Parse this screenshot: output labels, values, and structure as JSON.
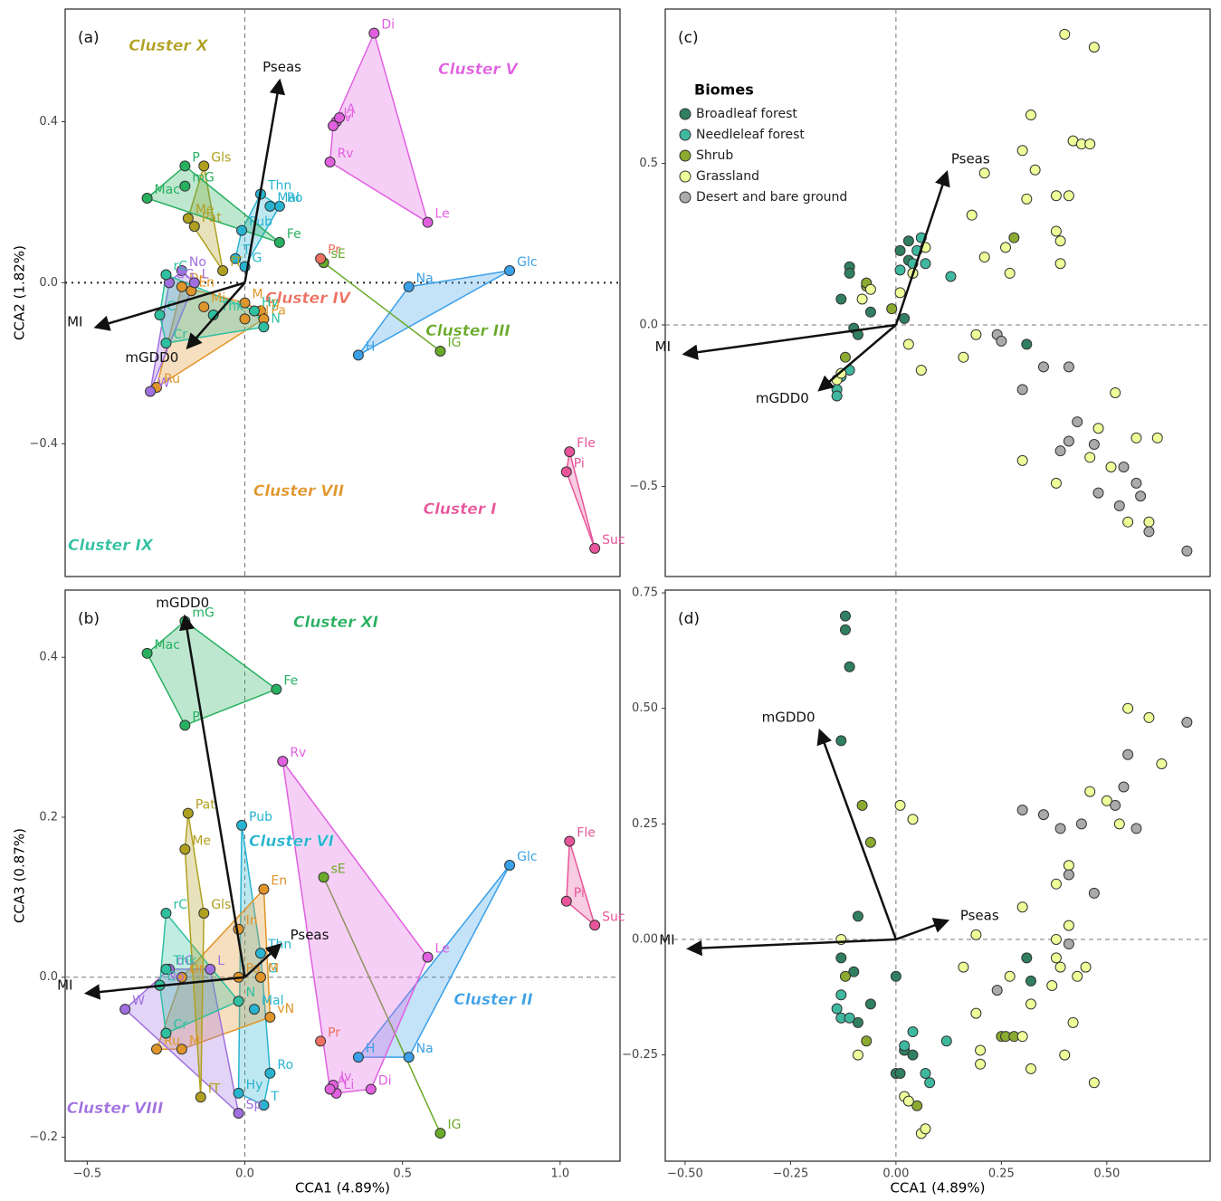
{
  "chart_data": [
    {
      "type": "scatter",
      "panel": "(a)",
      "ylabel": "CCA2 (1.82%)",
      "hull": true,
      "hline": "dotted",
      "xlim": [
        -0.57,
        1.19
      ],
      "ylim": [
        -0.73,
        0.68
      ],
      "yticks": [
        0.4,
        {
          "value": 0,
          "label": "0.0"
        },
        {
          "value": -0.4,
          "label": "−0.4"
        }
      ],
      "series": [
        {
          "name": "Cluster I",
          "color": "#e8559a",
          "labels": [
            "Fle",
            "Pi",
            "Suc"
          ],
          "x": [
            1.03,
            1.02,
            1.11
          ],
          "values": [
            -0.42,
            -0.47,
            -0.66
          ]
        },
        {
          "color": "#3aa0e8",
          "labels": [
            "Glc",
            "Na",
            "H"
          ],
          "x": [
            0.84,
            0.52,
            0.36
          ],
          "values": [
            0.03,
            -0.01,
            -0.18
          ]
        },
        {
          "name": "Cluster III",
          "color": "#6aaa2a",
          "labels": [
            "sE",
            "IG"
          ],
          "x": [
            0.25,
            0.62
          ],
          "values": [
            0.05,
            -0.17
          ]
        },
        {
          "name": "Cluster IV",
          "color": "#ee7060",
          "labels": [
            "Pr"
          ],
          "x": [
            0.24
          ],
          "values": [
            0.06
          ]
        },
        {
          "name": "Cluster V",
          "color": "#e060e0",
          "labels": [
            "Di",
            "Li",
            "Iv",
            "A",
            "Rv",
            "Le"
          ],
          "x": [
            0.41,
            0.29,
            0.28,
            0.3,
            0.27,
            0.58
          ],
          "values": [
            0.62,
            0.4,
            0.39,
            0.41,
            0.3,
            0.15
          ]
        },
        {
          "color": "#28b4d0",
          "labels": [
            "Thn",
            "Ro",
            "Mal",
            "Pub",
            "T",
            "G"
          ],
          "x": [
            0.05,
            0.11,
            0.08,
            -0.01,
            -0.03,
            0.0
          ],
          "values": [
            0.22,
            0.19,
            0.19,
            0.13,
            0.06,
            0.04
          ]
        },
        {
          "name": "Cluster VII",
          "color": "#e0952a",
          "labels": [
            "Ru",
            "Mi",
            "Dr",
            "In",
            "Pa",
            "M",
            "En",
            "vN"
          ],
          "x": [
            -0.28,
            -0.13,
            -0.2,
            0.05,
            0.06,
            0.0,
            -0.17,
            0.0
          ],
          "values": [
            -0.26,
            -0.06,
            -0.01,
            -0.07,
            -0.09,
            -0.05,
            -0.02,
            -0.09
          ]
        },
        {
          "color": "#a070e0",
          "labels": [
            "No",
            "dG",
            "L",
            "W"
          ],
          "x": [
            -0.2,
            -0.24,
            -0.16,
            -0.3
          ],
          "values": [
            0.03,
            0.0,
            0.0,
            -0.27
          ]
        },
        {
          "name": "Cluster IX",
          "color": "#2ec0a0",
          "labels": [
            "rC",
            "C",
            "Cr",
            "Thk",
            "N",
            "Hy"
          ],
          "x": [
            -0.25,
            -0.27,
            -0.25,
            -0.1,
            0.06,
            0.03
          ],
          "values": [
            0.02,
            -0.08,
            -0.15,
            -0.08,
            -0.11,
            -0.07
          ]
        },
        {
          "name": "Cluster X",
          "color": "#b0a020",
          "labels": [
            "Gls",
            "Me",
            "Pat",
            "fT"
          ],
          "x": [
            -0.13,
            -0.18,
            -0.16,
            -0.07
          ],
          "values": [
            0.29,
            0.16,
            0.14,
            0.03
          ]
        },
        {
          "color": "#27b060",
          "labels": [
            "P",
            "mG",
            "Mac",
            "Fe"
          ],
          "x": [
            -0.19,
            -0.19,
            -0.31,
            0.11
          ],
          "values": [
            0.29,
            0.24,
            0.21,
            0.1
          ]
        }
      ],
      "arrows": {
        "labels": [
          "Pseas",
          "MI",
          "mGDD0"
        ],
        "x": [
          0.11,
          -0.47,
          -0.18
        ],
        "values": [
          0.5,
          -0.11,
          -0.16
        ]
      }
    },
    {
      "type": "scatter",
      "panel": "(b)",
      "ylabel": "CCA3 (0.87%)",
      "xlabel": "CCA1 (4.89%)",
      "hull": true,
      "hline": "dashed",
      "xlim": [
        -0.57,
        1.19
      ],
      "ylim": [
        -0.23,
        0.484
      ],
      "xticks": [
        {
          "value": -0.5,
          "label": "−0.5"
        },
        {
          "value": 0,
          "label": "0.0"
        },
        0.5,
        {
          "value": 1,
          "label": "1.0"
        }
      ],
      "yticks": [
        0.4,
        0.2,
        {
          "value": 0,
          "label": "0.0"
        },
        {
          "value": -0.2,
          "label": "−0.2"
        }
      ],
      "series": [
        {
          "color": "#e8559a",
          "labels": [
            "Fle",
            "Pi",
            "Suc"
          ],
          "x": [
            1.03,
            1.02,
            1.11
          ],
          "values": [
            0.17,
            0.095,
            0.065
          ]
        },
        {
          "name": "Cluster II",
          "color": "#3aa0e8",
          "labels": [
            "Glc",
            "H",
            "Na"
          ],
          "x": [
            0.84,
            0.36,
            0.52
          ],
          "values": [
            0.14,
            -0.1,
            -0.1
          ]
        },
        {
          "color": "#6aaa2a",
          "labels": [
            "sE",
            "IG"
          ],
          "x": [
            0.25,
            0.62
          ],
          "values": [
            0.125,
            -0.195
          ]
        },
        {
          "color": "#ee7060",
          "labels": [
            "Pr"
          ],
          "x": [
            0.24
          ],
          "values": [
            -0.08
          ]
        },
        {
          "color": "#e060e0",
          "labels": [
            "Rv",
            "Le",
            "Di",
            "Li",
            "Iv",
            "A"
          ],
          "x": [
            0.12,
            0.58,
            0.4,
            0.29,
            0.28,
            0.27
          ],
          "values": [
            0.27,
            0.025,
            -0.14,
            -0.145,
            -0.135,
            -0.14
          ]
        },
        {
          "name": "Cluster VI",
          "color": "#28b4d0",
          "labels": [
            "Pub",
            "Thn",
            "G",
            "Mal",
            "Ro",
            "T",
            "Hy"
          ],
          "x": [
            -0.01,
            0.05,
            0.05,
            0.03,
            0.08,
            0.06,
            -0.02
          ],
          "values": [
            0.19,
            0.03,
            0.0,
            -0.04,
            -0.12,
            -0.16,
            -0.145
          ]
        },
        {
          "color": "#e0952a",
          "labels": [
            "En",
            "In",
            "Pa",
            "M",
            "vN",
            "Dr",
            "Ru",
            "Mi"
          ],
          "x": [
            0.06,
            -0.02,
            -0.02,
            0.05,
            0.08,
            -0.2,
            -0.28,
            -0.2
          ],
          "values": [
            0.11,
            0.06,
            0.0,
            0.0,
            -0.05,
            0.0,
            -0.09,
            -0.09
          ]
        },
        {
          "name": "Cluster VIII",
          "color": "#a070e0",
          "labels": [
            "L",
            "dG",
            "No",
            "W",
            "Sp"
          ],
          "x": [
            -0.11,
            -0.24,
            -0.27,
            -0.38,
            -0.02
          ],
          "values": [
            0.01,
            0.01,
            -0.01,
            -0.04,
            -0.17
          ]
        },
        {
          "color": "#2ec0a0",
          "labels": [
            "rC",
            "Thk",
            "C",
            "Cr",
            "N"
          ],
          "x": [
            -0.25,
            -0.25,
            -0.27,
            -0.25,
            -0.02
          ],
          "values": [
            0.08,
            0.01,
            -0.01,
            -0.07,
            -0.03
          ]
        },
        {
          "color": "#b0a020",
          "labels": [
            "Pat",
            "Me",
            "Gls",
            "fT"
          ],
          "x": [
            -0.18,
            -0.19,
            -0.13,
            -0.14
          ],
          "values": [
            0.205,
            0.16,
            0.08,
            -0.15
          ]
        },
        {
          "name": "Cluster XI",
          "color": "#27b060",
          "labels": [
            "mG",
            "Mac",
            "P",
            "Fe"
          ],
          "x": [
            -0.19,
            -0.31,
            -0.19,
            0.1
          ],
          "values": [
            0.445,
            0.405,
            0.315,
            0.36
          ]
        }
      ],
      "arrows": {
        "labels": [
          "mGDD0",
          "MI",
          "Pseas"
        ],
        "x": [
          -0.19,
          -0.5,
          0.11
        ],
        "values": [
          0.45,
          -0.02,
          0.04
        ]
      }
    },
    {
      "type": "scatter",
      "panel": "(c)",
      "hline": "dashed",
      "legend": "upper left",
      "legend_title": "Biomes",
      "xlim": [
        -0.547,
        0.745
      ],
      "ylim": [
        -0.779,
        0.978
      ],
      "yticks": [
        0.5,
        {
          "value": 0,
          "label": "0.0"
        },
        {
          "value": -0.5,
          "label": "−0.5"
        }
      ],
      "series": [
        {
          "name": "Broadleaf forest",
          "color": "#2f7f60",
          "x": [
            0.31,
            0.03,
            0.03,
            -0.11,
            -0.11,
            -0.13,
            -0.1,
            0.02,
            -0.09,
            0.01,
            -0.06
          ],
          "values": [
            -0.06,
            0.26,
            0.2,
            0.18,
            0.16,
            0.08,
            -0.01,
            0.02,
            -0.03,
            0.23,
            0.04
          ]
        },
        {
          "name": "Needleleaf forest",
          "color": "#3fb8a0",
          "x": [
            0.04,
            0.07,
            0.13,
            0.06,
            0.05,
            -0.14,
            -0.14,
            -0.11,
            -0.13,
            0.01
          ],
          "values": [
            0.19,
            0.19,
            0.15,
            0.27,
            0.23,
            -0.2,
            -0.22,
            -0.14,
            -0.16,
            0.17
          ]
        },
        {
          "name": "Shrub",
          "color": "#8aaa30",
          "x": [
            0.28,
            0.04,
            -0.07,
            -0.12,
            -0.07,
            -0.01
          ],
          "values": [
            0.27,
            0.16,
            0.12,
            -0.1,
            0.13,
            0.05
          ]
        },
        {
          "name": "Grassland",
          "color": "#eeff99",
          "x": [
            0.4,
            0.47,
            0.32,
            0.42,
            0.44,
            0.46,
            0.3,
            0.33,
            0.21,
            0.38,
            0.31,
            0.41,
            0.18,
            0.38,
            0.39,
            0.26,
            0.21,
            0.39,
            0.27,
            0.07,
            0.04,
            0.01,
            0.03,
            0.06,
            0.19,
            0.16,
            0.52,
            0.48,
            0.57,
            0.46,
            0.51,
            0.62,
            0.3,
            0.38,
            0.55,
            0.6,
            -0.14,
            -0.13,
            -0.06,
            -0.08
          ],
          "values": [
            0.9,
            0.86,
            0.65,
            0.57,
            0.56,
            0.56,
            0.54,
            0.48,
            0.47,
            0.4,
            0.39,
            0.4,
            0.34,
            0.29,
            0.26,
            0.24,
            0.21,
            0.19,
            0.16,
            0.24,
            0.16,
            0.1,
            -0.06,
            -0.14,
            -0.03,
            -0.1,
            -0.21,
            -0.32,
            -0.35,
            -0.41,
            -0.44,
            -0.35,
            -0.42,
            -0.49,
            -0.61,
            -0.61,
            -0.17,
            -0.15,
            0.11,
            0.08
          ]
        },
        {
          "name": "Desert and bare ground",
          "color": "#aaaaaa",
          "x": [
            0.24,
            0.25,
            0.35,
            0.41,
            0.3,
            0.43,
            0.41,
            0.39,
            0.47,
            0.54,
            0.57,
            0.48,
            0.53,
            0.58,
            0.6,
            0.69
          ],
          "values": [
            -0.03,
            -0.05,
            -0.13,
            -0.13,
            -0.2,
            -0.3,
            -0.36,
            -0.39,
            -0.37,
            -0.44,
            -0.49,
            -0.52,
            -0.56,
            -0.53,
            -0.64,
            -0.7
          ]
        }
      ],
      "arrows": {
        "labels": [
          "MI",
          "mGDD0",
          "Pseas"
        ],
        "x": [
          -0.5,
          -0.18,
          0.12
        ],
        "values": [
          -0.09,
          -0.2,
          0.47
        ]
      }
    },
    {
      "type": "scatter",
      "panel": "(d)",
      "xlabel": "CCA1 (4.89%)",
      "hline": "dashed",
      "xlim": [
        -0.547,
        0.745
      ],
      "ylim": [
        -0.48,
        0.756
      ],
      "xticks": [
        {
          "value": -0.5,
          "label": "−0.50"
        },
        {
          "value": -0.25,
          "label": "−0.25"
        },
        {
          "value": 0,
          "label": "0.00"
        },
        0.25,
        {
          "value": 0.5,
          "label": "0.50"
        }
      ],
      "yticks": [
        0.75,
        {
          "value": 0.5,
          "label": "0.50"
        },
        0.25,
        {
          "value": 0,
          "label": "0.00"
        },
        {
          "value": -0.25,
          "label": "−0.25"
        }
      ],
      "series": [
        {
          "color": "#2f7f60",
          "x": [
            -0.12,
            -0.12,
            -0.11,
            -0.13,
            -0.09,
            0.31,
            0.32,
            0.0,
            -0.13,
            -0.1,
            -0.06,
            0.02,
            0.0,
            0.01,
            0.04,
            -0.09
          ],
          "values": [
            0.7,
            0.67,
            0.59,
            0.43,
            0.05,
            -0.04,
            -0.09,
            -0.08,
            -0.04,
            -0.07,
            -0.14,
            -0.24,
            -0.29,
            -0.29,
            -0.25,
            -0.18
          ]
        },
        {
          "color": "#3fb8a0",
          "x": [
            -0.13,
            -0.14,
            -0.13,
            -0.11,
            0.07,
            0.08,
            0.12,
            0.04,
            0.02
          ],
          "values": [
            -0.12,
            -0.15,
            -0.17,
            -0.17,
            -0.29,
            -0.31,
            -0.22,
            -0.2,
            -0.23
          ]
        },
        {
          "color": "#8aaa30",
          "x": [
            -0.08,
            -0.06,
            -0.12,
            -0.07,
            0.05,
            0.25,
            0.26,
            0.28
          ],
          "values": [
            0.29,
            0.21,
            -0.08,
            -0.22,
            -0.36,
            -0.21,
            -0.21,
            -0.21
          ]
        },
        {
          "color": "#eeff99",
          "x": [
            0.55,
            0.6,
            0.63,
            0.46,
            0.5,
            0.53,
            0.38,
            0.41,
            0.3,
            0.19,
            0.01,
            0.04,
            -0.13,
            0.16,
            0.19,
            0.27,
            0.38,
            0.38,
            0.39,
            0.45,
            0.43,
            0.37,
            0.32,
            0.3,
            0.2,
            0.2,
            0.4,
            0.42,
            0.32,
            0.47,
            -0.09,
            0.02,
            0.03,
            0.06,
            0.07,
            0.41
          ],
          "values": [
            0.5,
            0.48,
            0.38,
            0.32,
            0.3,
            0.25,
            0.12,
            0.16,
            0.07,
            0.01,
            0.29,
            0.26,
            0.0,
            -0.06,
            -0.16,
            -0.08,
            0.0,
            -0.04,
            -0.06,
            -0.06,
            -0.08,
            -0.1,
            -0.14,
            -0.21,
            -0.24,
            -0.27,
            -0.25,
            -0.18,
            -0.28,
            -0.31,
            -0.25,
            -0.34,
            -0.35,
            -0.42,
            -0.41,
            0.03
          ]
        },
        {
          "color": "#aaaaaa",
          "x": [
            0.69,
            0.55,
            0.54,
            0.52,
            0.57,
            0.3,
            0.35,
            0.39,
            0.44,
            0.41,
            0.47,
            0.41,
            0.24
          ],
          "values": [
            0.47,
            0.4,
            0.33,
            0.29,
            0.24,
            0.28,
            0.27,
            0.24,
            0.25,
            0.14,
            0.1,
            -0.01,
            -0.11
          ]
        }
      ],
      "arrows": {
        "labels": [
          "mGDD0",
          "MI",
          "Pseas"
        ],
        "x": [
          -0.18,
          -0.49,
          0.12
        ],
        "values": [
          0.45,
          -0.02,
          0.04
        ]
      }
    }
  ]
}
